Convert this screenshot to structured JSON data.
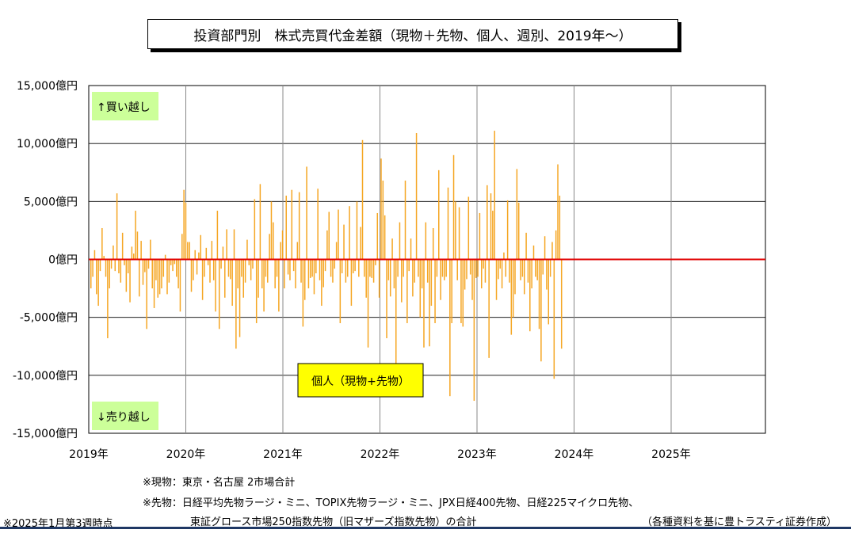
{
  "title": "投資部門別　株式売買代金差額（現物＋先物、個人、週別、2019年～）",
  "chart_data": {
    "type": "bar",
    "series": [
      {
        "name": "個人（現物+先物）",
        "color": "#f5a623"
      }
    ],
    "y_ticks": [
      "15,000億円",
      "10,000億円",
      "5,000億円",
      "0億円",
      "-5,000億円",
      "-10,000億円",
      "-15,000億円"
    ],
    "x_ticks": [
      "2019年",
      "2020年",
      "2021年",
      "2022年",
      "2023年",
      "2024年",
      "2025年"
    ],
    "ylim": [
      -15000,
      15000
    ],
    "unit": "億円",
    "zero_line_color": "#e00000",
    "buy_label": "↑買い越し",
    "sell_label": "↓売り越し",
    "label_box_color": "#ccff99",
    "legend_box_color": "#ffff00",
    "x_start": "2019-01",
    "x_end": "2026-01",
    "week_anchors": [
      [
        0,
        -2500
      ],
      [
        1,
        -1500
      ],
      [
        2,
        800
      ],
      [
        3,
        -3000
      ],
      [
        4,
        -4000
      ],
      [
        5,
        -1000
      ],
      [
        6,
        2700
      ],
      [
        7,
        300
      ],
      [
        8,
        -1500
      ],
      [
        9,
        -6800
      ],
      [
        10,
        -2500
      ],
      [
        11,
        -800
      ],
      [
        12,
        1200
      ],
      [
        13,
        -1000
      ],
      [
        14,
        5700
      ],
      [
        15,
        -1200
      ],
      [
        16,
        -2000
      ],
      [
        17,
        2300
      ],
      [
        18,
        -500
      ],
      [
        19,
        -2800
      ],
      [
        20,
        -1200
      ],
      [
        21,
        -3700
      ],
      [
        22,
        1100
      ],
      [
        23,
        500
      ],
      [
        24,
        4200
      ],
      [
        25,
        2400
      ],
      [
        26,
        -3200
      ],
      [
        27,
        1600
      ],
      [
        28,
        -2200
      ],
      [
        29,
        -1100
      ],
      [
        30,
        -6000
      ],
      [
        31,
        -800
      ],
      [
        32,
        1700
      ],
      [
        33,
        -2500
      ],
      [
        34,
        -4200
      ],
      [
        35,
        -1800
      ],
      [
        36,
        -3300
      ],
      [
        37,
        -3000
      ],
      [
        38,
        -2500
      ],
      [
        39,
        -1500
      ],
      [
        40,
        400
      ],
      [
        41,
        -3000
      ],
      [
        42,
        -2000
      ],
      [
        43,
        -500
      ],
      [
        44,
        -1000
      ],
      [
        45,
        -400
      ],
      [
        46,
        -1500
      ],
      [
        47,
        -2500
      ],
      [
        48,
        -4500
      ],
      [
        49,
        2200
      ],
      [
        50,
        6000
      ],
      [
        51,
        4900
      ],
      [
        52,
        1500
      ],
      [
        53,
        1500
      ],
      [
        54,
        -2800
      ],
      [
        55,
        -1800
      ],
      [
        56,
        800
      ],
      [
        57,
        -1300
      ],
      [
        58,
        600
      ],
      [
        59,
        2100
      ],
      [
        60,
        -3500
      ],
      [
        61,
        -1500
      ],
      [
        62,
        1000
      ],
      [
        63,
        -500
      ],
      [
        64,
        -2000
      ],
      [
        65,
        1600
      ],
      [
        66,
        -1800
      ],
      [
        67,
        -4500
      ],
      [
        68,
        4200
      ],
      [
        69,
        -6000
      ],
      [
        70,
        -800
      ],
      [
        71,
        1100
      ],
      [
        72,
        -3300
      ],
      [
        73,
        2600
      ],
      [
        74,
        -1500
      ],
      [
        75,
        -1700
      ],
      [
        76,
        -4000
      ],
      [
        77,
        2600
      ],
      [
        78,
        -7700
      ],
      [
        79,
        -2500
      ],
      [
        80,
        -6700
      ],
      [
        81,
        -1500
      ],
      [
        82,
        -3300
      ],
      [
        83,
        -2000
      ],
      [
        84,
        1700
      ],
      [
        85,
        -500
      ],
      [
        86,
        -1800
      ],
      [
        87,
        -800
      ],
      [
        88,
        5200
      ],
      [
        89,
        -5500
      ],
      [
        90,
        -3300
      ],
      [
        91,
        6500
      ],
      [
        92,
        -2500
      ],
      [
        93,
        -4500
      ],
      [
        94,
        -1500
      ],
      [
        95,
        -2000
      ],
      [
        96,
        2200
      ],
      [
        97,
        5000
      ],
      [
        98,
        3200
      ],
      [
        99,
        -2500
      ],
      [
        100,
        -1500
      ],
      [
        101,
        -4500
      ],
      [
        102,
        1500
      ],
      [
        103,
        2500
      ],
      [
        104,
        -2500
      ],
      [
        105,
        5500
      ],
      [
        106,
        -1300
      ],
      [
        107,
        -1800
      ],
      [
        108,
        6000
      ],
      [
        109,
        -1000
      ],
      [
        110,
        -2500
      ],
      [
        111,
        1500
      ],
      [
        112,
        5800
      ],
      [
        113,
        -2000
      ],
      [
        114,
        -5800
      ],
      [
        115,
        -3500
      ],
      [
        116,
        8000
      ],
      [
        117,
        -2500
      ],
      [
        118,
        -1600
      ],
      [
        119,
        -1500
      ],
      [
        120,
        -3000
      ],
      [
        121,
        -1200
      ],
      [
        122,
        6100
      ],
      [
        123,
        -1800
      ],
      [
        124,
        -4000
      ],
      [
        125,
        -2400
      ],
      [
        126,
        -1000
      ],
      [
        127,
        2500
      ],
      [
        128,
        4100
      ],
      [
        129,
        -1500
      ],
      [
        130,
        -2000
      ],
      [
        131,
        -800
      ],
      [
        132,
        1500
      ],
      [
        133,
        4300
      ],
      [
        134,
        -5500
      ],
      [
        135,
        -1200
      ],
      [
        136,
        3000
      ],
      [
        137,
        -2000
      ],
      [
        138,
        -1500
      ],
      [
        139,
        4600
      ],
      [
        140,
        -4000
      ],
      [
        141,
        -1200
      ],
      [
        142,
        -1000
      ],
      [
        143,
        5000
      ],
      [
        144,
        -1500
      ],
      [
        145,
        2800
      ],
      [
        146,
        10300
      ],
      [
        147,
        -1500
      ],
      [
        148,
        -3300
      ],
      [
        149,
        -7600
      ],
      [
        150,
        -1500
      ],
      [
        151,
        -1600
      ],
      [
        152,
        -2000
      ],
      [
        153,
        -500
      ],
      [
        154,
        4000
      ],
      [
        155,
        -3300
      ],
      [
        156,
        8700
      ],
      [
        157,
        6800
      ],
      [
        158,
        3800
      ],
      [
        159,
        -6800
      ],
      [
        160,
        -1800
      ],
      [
        161,
        -3200
      ],
      [
        162,
        1800
      ],
      [
        163,
        -2500
      ],
      [
        164,
        -9000
      ],
      [
        165,
        -1500
      ],
      [
        166,
        3200
      ],
      [
        167,
        -3700
      ],
      [
        168,
        -1500
      ],
      [
        169,
        6800
      ],
      [
        170,
        -5500
      ],
      [
        171,
        -1000
      ],
      [
        172,
        1800
      ],
      [
        173,
        -3200
      ],
      [
        174,
        -2000
      ],
      [
        175,
        10900
      ],
      [
        176,
        -1500
      ],
      [
        177,
        -5000
      ],
      [
        178,
        -2500
      ],
      [
        179,
        -7600
      ],
      [
        180,
        3200
      ],
      [
        181,
        -2000
      ],
      [
        182,
        -7500
      ],
      [
        183,
        -4000
      ],
      [
        184,
        2700
      ],
      [
        185,
        -5500
      ],
      [
        186,
        -1500
      ],
      [
        187,
        7700
      ],
      [
        188,
        -3500
      ],
      [
        189,
        -1500
      ],
      [
        190,
        -1800
      ],
      [
        191,
        -1500
      ],
      [
        192,
        6200
      ],
      [
        193,
        -11800
      ],
      [
        194,
        -5500
      ],
      [
        195,
        9000
      ],
      [
        196,
        5000
      ],
      [
        197,
        -1800
      ],
      [
        198,
        4500
      ],
      [
        199,
        -5500
      ],
      [
        200,
        -5800
      ],
      [
        201,
        -2600
      ],
      [
        202,
        -1700
      ],
      [
        203,
        5400
      ],
      [
        204,
        -1300
      ],
      [
        205,
        -3500
      ],
      [
        206,
        -12200
      ],
      [
        207,
        -1600
      ],
      [
        208,
        -1500
      ],
      [
        209,
        4000
      ],
      [
        210,
        -2500
      ],
      [
        211,
        -800
      ],
      [
        212,
        -2000
      ],
      [
        213,
        6400
      ],
      [
        214,
        -8500
      ],
      [
        215,
        5700
      ],
      [
        216,
        4200
      ],
      [
        217,
        11100
      ],
      [
        218,
        -3500
      ],
      [
        219,
        -1700
      ],
      [
        220,
        -800
      ],
      [
        221,
        -2500
      ],
      [
        222,
        600
      ],
      [
        223,
        -1500
      ],
      [
        224,
        5100
      ],
      [
        225,
        -2000
      ],
      [
        226,
        -6500
      ],
      [
        227,
        -5000
      ],
      [
        228,
        -3000
      ],
      [
        229,
        7800
      ],
      [
        230,
        4900
      ],
      [
        231,
        -1800
      ],
      [
        232,
        -1500
      ],
      [
        233,
        -3000
      ],
      [
        234,
        2300
      ],
      [
        235,
        -2000
      ],
      [
        236,
        -6200
      ],
      [
        237,
        -2500
      ],
      [
        238,
        1200
      ],
      [
        239,
        -1500
      ],
      [
        240,
        -1800
      ],
      [
        241,
        -6000
      ],
      [
        242,
        -8800
      ],
      [
        243,
        -1300
      ],
      [
        244,
        2000
      ],
      [
        245,
        -2600
      ],
      [
        246,
        -5600
      ],
      [
        247,
        -1500
      ],
      [
        248,
        1500
      ],
      [
        249,
        -10300
      ],
      [
        250,
        2500
      ],
      [
        251,
        8200
      ],
      [
        252,
        5500
      ],
      [
        253,
        -7700
      ]
    ]
  },
  "notes": {
    "genbutsu": "※現物：東京・名古屋 2市場合計",
    "sakimono1": "※先物：日経平均先物ラージ・ミニ、TOPIX先物ラージ・ミニ、JPX日経400先物、日経225マイクロ先物、",
    "sakimono2": "東証グロース市場250指数先物（旧マザーズ指数先物）の合計",
    "as_of": "※2025年1月第3週時点",
    "source": "（各種資料を基に豊トラスティ証券作成）"
  }
}
